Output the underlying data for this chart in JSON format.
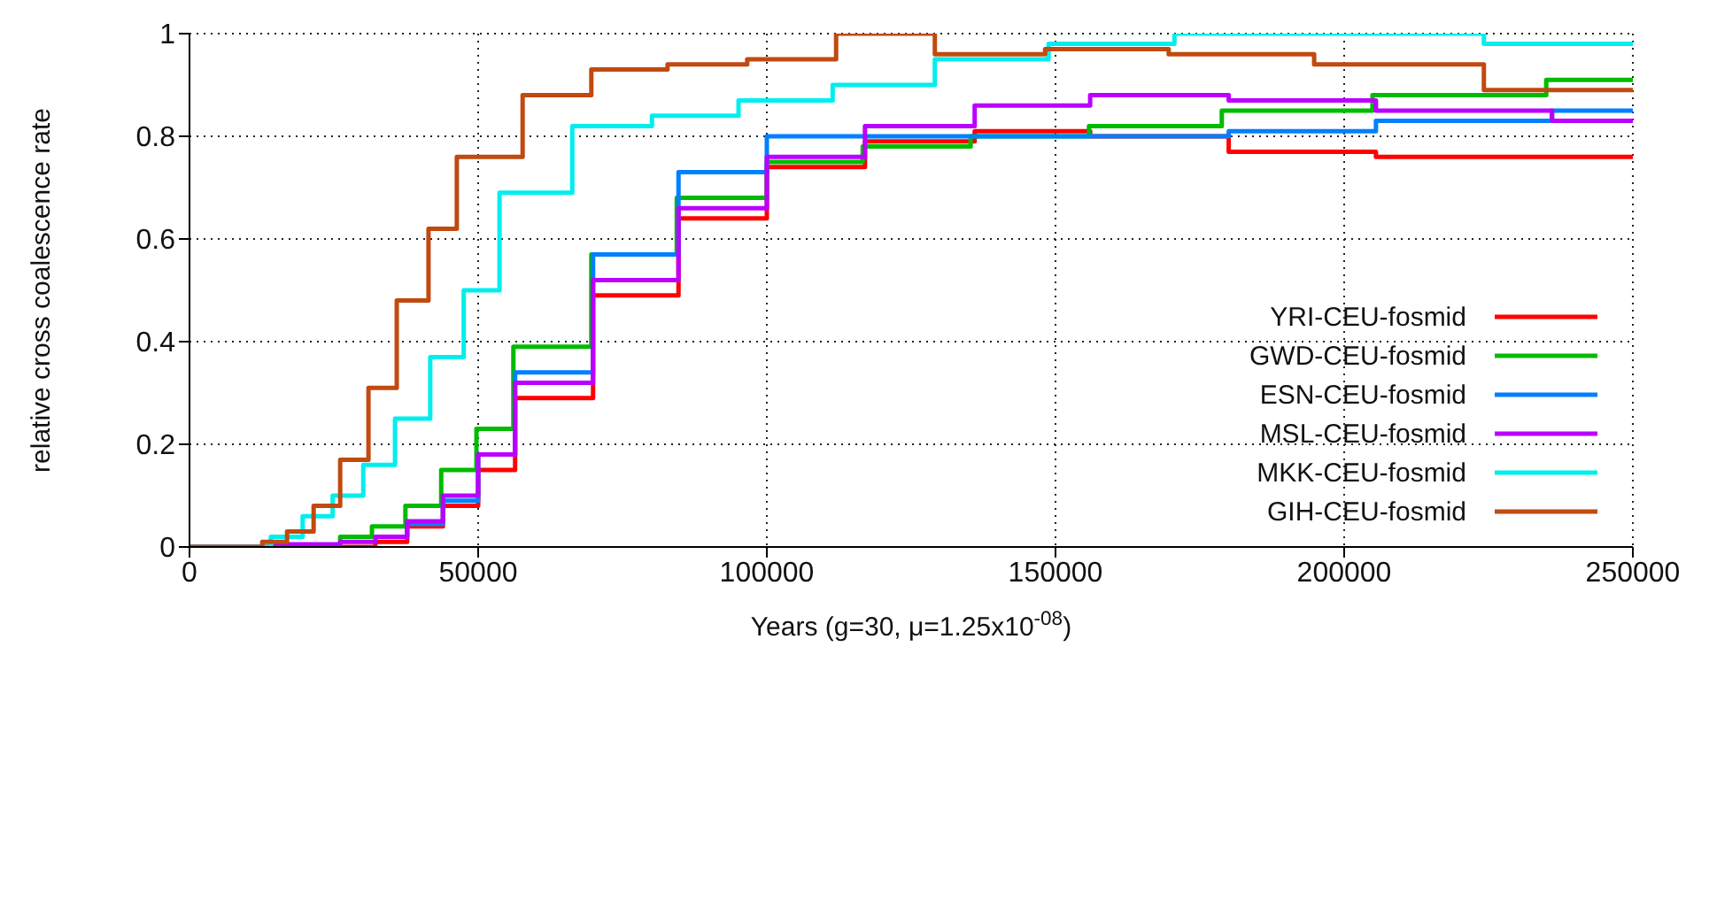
{
  "chart_data": {
    "type": "step",
    "xlabel": "Years (g=30, μ=1.25x10$^{-08}$)",
    "ylabel": "relative cross coalescence rate",
    "xlim": [
      0,
      250000
    ],
    "xticks": [
      0,
      50000,
      100000,
      150000,
      200000,
      250000
    ],
    "ylim": [
      0,
      1
    ],
    "yticks": [
      0,
      0.2,
      0.4,
      0.6,
      0.8,
      1
    ],
    "grid": true,
    "legend": "right",
    "series": [
      {
        "name": "YRI-CEU-fosmid",
        "color": "#ff0000",
        "x": [
          0,
          32200,
          37700,
          43900,
          50000,
          56400,
          69900,
          84700,
          100000,
          117000,
          136000,
          156000,
          180000,
          205500,
          236000,
          250000
        ],
        "values": [
          0,
          0.01,
          0.04,
          0.08,
          0.15,
          0.29,
          0.49,
          0.64,
          0.74,
          0.79,
          0.81,
          0.8,
          0.77,
          0.76,
          0.76,
          0.76
        ]
      },
      {
        "name": "GWD-CEU-fosmid",
        "color": "#00bb00",
        "x": [
          0,
          26100,
          31600,
          37400,
          43600,
          49700,
          56100,
          69600,
          84400,
          100000,
          116600,
          135300,
          155800,
          178800,
          204900,
          235000,
          250000
        ],
        "values": [
          0,
          0.02,
          0.04,
          0.08,
          0.15,
          0.23,
          0.39,
          0.57,
          0.68,
          0.75,
          0.78,
          0.8,
          0.82,
          0.85,
          0.88,
          0.91,
          0.91
        ]
      },
      {
        "name": "ESN-CEU-fosmid",
        "color": "#0080ff",
        "x": [
          32200,
          37700,
          43900,
          50000,
          56400,
          69900,
          84700,
          100000,
          180000,
          205500,
          236000,
          250000
        ],
        "values": [
          0.02,
          0.045,
          0.09,
          0.18,
          0.34,
          0.57,
          0.73,
          0.8,
          0.81,
          0.83,
          0.85,
          0.85
        ]
      },
      {
        "name": "MSL-CEU-fosmid",
        "color": "#bb00ff",
        "x": [
          0,
          15000,
          26100,
          32200,
          37700,
          43900,
          50000,
          56400,
          69900,
          84700,
          100000,
          117000,
          136000,
          156000,
          180000,
          205500,
          236000,
          250000
        ],
        "values": [
          0,
          0.005,
          0.01,
          0.02,
          0.05,
          0.1,
          0.18,
          0.32,
          0.52,
          0.66,
          0.76,
          0.82,
          0.86,
          0.88,
          0.87,
          0.85,
          0.83,
          0.83
        ]
      },
      {
        "name": "MKK-CEU-fosmid",
        "color": "#00eeee",
        "x": [
          0,
          14100,
          19600,
          24800,
          30100,
          35600,
          41700,
          47500,
          53700,
          66300,
          80100,
          95100,
          111400,
          129100,
          148800,
          170600,
          224200,
          250000
        ],
        "values": [
          0,
          0.02,
          0.06,
          0.1,
          0.16,
          0.25,
          0.37,
          0.5,
          0.69,
          0.82,
          0.84,
          0.87,
          0.9,
          0.95,
          0.98,
          1,
          0.98,
          0.98
        ]
      },
      {
        "name": "GIH-CEU-fosmid",
        "color": "#c04a10",
        "x": [
          0,
          12600,
          16900,
          21500,
          26100,
          31000,
          35900,
          41400,
          46300,
          57700,
          69600,
          82800,
          96600,
          112000,
          129100,
          148200,
          169600,
          194800,
          224200,
          250000
        ],
        "values": [
          0,
          0.01,
          0.03,
          0.08,
          0.17,
          0.31,
          0.48,
          0.62,
          0.76,
          0.88,
          0.93,
          0.94,
          0.95,
          1,
          0.96,
          0.97,
          0.96,
          0.94,
          0.89,
          0.89
        ]
      }
    ]
  }
}
